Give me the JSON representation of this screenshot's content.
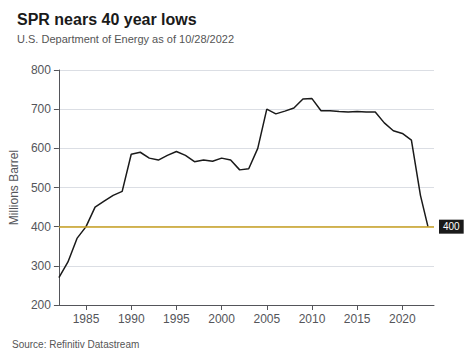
{
  "chart_data": {
    "type": "line",
    "title": "SPR nears 40 year lows",
    "subtitle": "U.S. Department of Energy as of 10/28/2022",
    "source": "Source: Refinitiv Datastream",
    "ylabel": "Millions Barrel",
    "x": [
      1982,
      1983,
      1984,
      1985,
      1986,
      1987,
      1988,
      1989,
      1990,
      1991,
      1992,
      1993,
      1994,
      1995,
      1996,
      1997,
      1998,
      1999,
      2000,
      2001,
      2002,
      2003,
      2004,
      2005,
      2006,
      2007,
      2008,
      2009,
      2010,
      2011,
      2012,
      2013,
      2014,
      2015,
      2016,
      2017,
      2018,
      2019,
      2020,
      2021,
      2022,
      2022.83
    ],
    "values": [
      270,
      310,
      370,
      400,
      450,
      465,
      480,
      490,
      585,
      590,
      575,
      570,
      582,
      592,
      582,
      566,
      570,
      567,
      575,
      570,
      545,
      548,
      600,
      700,
      688,
      695,
      703,
      726,
      727,
      696,
      696,
      694,
      693,
      694,
      693,
      693,
      665,
      645,
      638,
      621,
      480,
      400
    ],
    "color": "#1a1a1a",
    "xlim": [
      1982,
      2023.5
    ],
    "xticks": [
      1985,
      1990,
      1995,
      2000,
      2005,
      2010,
      2015,
      2020
    ],
    "ylim": [
      200,
      800
    ],
    "yticks": [
      200,
      300,
      400,
      500,
      600,
      700,
      800
    ],
    "reference_line": {
      "value": 400,
      "label": "400",
      "color": "#c8a020"
    },
    "grid": true
  }
}
